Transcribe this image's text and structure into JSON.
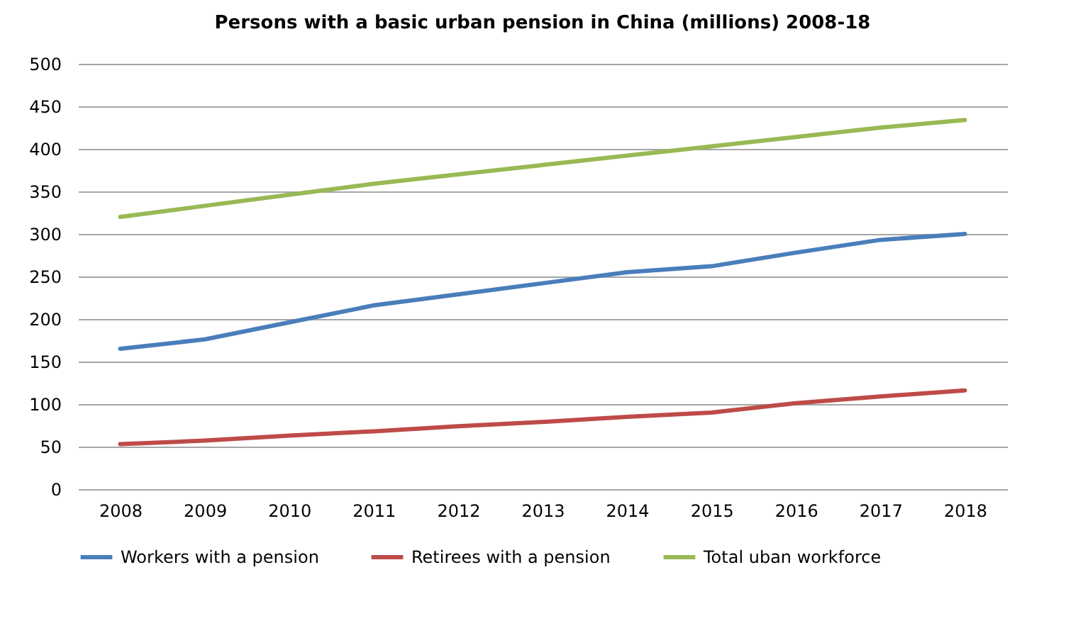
{
  "chart_data": {
    "type": "line",
    "title": "Persons with a basic urban pension in China (millions)  2008-18",
    "categories": [
      "2008",
      "2009",
      "2010",
      "2011",
      "2012",
      "2013",
      "2014",
      "2015",
      "2016",
      "2017",
      "2018"
    ],
    "series": [
      {
        "name": "Workers with a pension",
        "color": "#4a7ebb",
        "values": [
          165,
          176,
          196,
          216,
          229,
          242,
          255,
          262,
          278,
          293,
          300
        ]
      },
      {
        "name": "Retirees with a pension",
        "color": "#be4b48",
        "values": [
          53,
          57,
          63,
          68,
          74,
          79,
          85,
          90,
          101,
          109,
          116
        ]
      },
      {
        "name": "Total uban workforce",
        "color": "#98b954",
        "values": [
          320,
          333,
          346,
          359,
          370,
          381,
          392,
          403,
          414,
          425,
          434
        ]
      }
    ],
    "ylim": [
      0,
      500
    ],
    "yticks": [
      0,
      50,
      100,
      150,
      200,
      250,
      300,
      350,
      400,
      450,
      500
    ],
    "grid": "y",
    "legend": "bottom",
    "marker": "none",
    "line_style": "solid"
  }
}
